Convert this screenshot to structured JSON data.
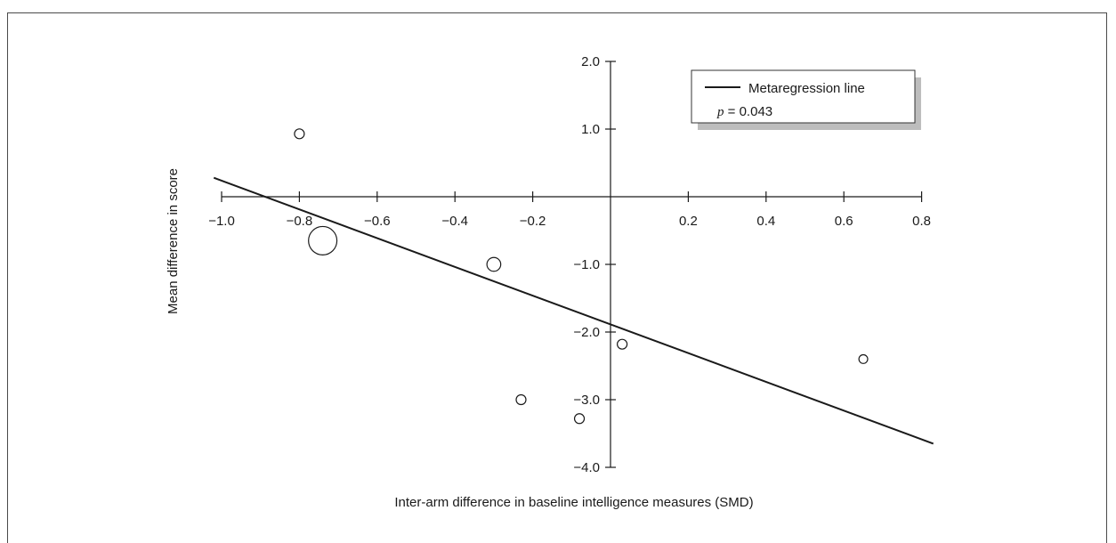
{
  "chart_data": {
    "type": "scatter",
    "xlabel": "Inter-arm difference in baseline intelligence measures (SMD)",
    "ylabel": "Mean difference in score",
    "xlim": [
      -1.0,
      0.8
    ],
    "ylim": [
      -4.0,
      2.0
    ],
    "x_ticks": [
      -1.0,
      -0.8,
      -0.6,
      -0.4,
      -0.2,
      0.2,
      0.4,
      0.6,
      0.8
    ],
    "x_tick_labels": [
      "−1.0",
      "−0.8",
      "−0.6",
      "−0.4",
      "−0.2",
      "0.2",
      "0.4",
      "0.6",
      "0.8"
    ],
    "y_ticks": [
      2.0,
      1.0,
      -1.0,
      -2.0,
      -3.0,
      -4.0
    ],
    "y_tick_labels": [
      "2.0",
      "1.0",
      "−1.0",
      "−2.0",
      "−3.0",
      "−4.0"
    ],
    "points": [
      {
        "x": -0.8,
        "y": 0.93,
        "size": 1
      },
      {
        "x": -0.74,
        "y": -0.65,
        "size": 4
      },
      {
        "x": -0.3,
        "y": -1.0,
        "size": 2
      },
      {
        "x": -0.23,
        "y": -3.0,
        "size": 1
      },
      {
        "x": -0.08,
        "y": -3.28,
        "size": 1
      },
      {
        "x": 0.03,
        "y": -2.18,
        "size": 1
      },
      {
        "x": 0.65,
        "y": -2.4,
        "size": 0.8
      }
    ],
    "regression_line": {
      "x": [
        -1.02,
        0.83
      ],
      "y": [
        0.28,
        -3.65
      ]
    },
    "legend": {
      "position": "top-right",
      "line_label": "Metaregression line",
      "p_symbol": "p",
      "p_text": " = 0.043"
    },
    "grid": false
  }
}
